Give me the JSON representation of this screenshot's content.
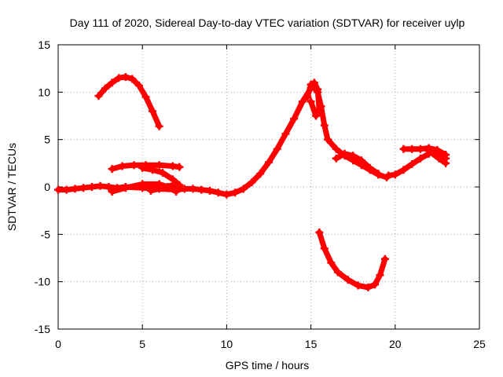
{
  "chart_data": {
    "type": "scatter",
    "title": "Day 111 of 2020, Sidereal Day-to-day VTEC variation (SDTVAR) for receiver uylp",
    "xlabel": "GPS time / hours",
    "ylabel": "SDTVAR / TECUs",
    "xlim": [
      0,
      25
    ],
    "ylim": [
      -15,
      15
    ],
    "xticks": [
      0,
      5,
      10,
      15,
      20,
      25
    ],
    "yticks": [
      -15,
      -10,
      -5,
      0,
      5,
      10,
      15
    ],
    "grid": true,
    "marker_color": "#ff0000",
    "series": [
      {
        "name": "arc-1",
        "points": [
          [
            2.4,
            9.6
          ],
          [
            2.8,
            10.4
          ],
          [
            3.2,
            11.0
          ],
          [
            3.6,
            11.5
          ],
          [
            4.0,
            11.6
          ],
          [
            4.4,
            11.4
          ],
          [
            4.8,
            10.7
          ],
          [
            5.2,
            9.5
          ],
          [
            5.6,
            8.0
          ],
          [
            6.0,
            6.4
          ]
        ]
      },
      {
        "name": "arc-2",
        "points": [
          [
            3.2,
            1.9
          ],
          [
            3.8,
            2.2
          ],
          [
            4.5,
            2.3
          ],
          [
            5.2,
            2.3
          ],
          [
            6.0,
            2.3
          ],
          [
            6.8,
            2.2
          ],
          [
            7.2,
            2.1
          ]
        ]
      },
      {
        "name": "arc-3",
        "points": [
          [
            5.0,
            2.0
          ],
          [
            5.6,
            1.8
          ],
          [
            6.2,
            1.5
          ],
          [
            6.8,
            0.8
          ],
          [
            7.2,
            0.2
          ]
        ]
      },
      {
        "name": "arc-4",
        "points": [
          [
            3.2,
            -0.5
          ],
          [
            4.0,
            -0.1
          ],
          [
            5.0,
            0.3
          ],
          [
            6.0,
            0.3
          ],
          [
            6.5,
            0.0
          ],
          [
            7.0,
            -0.5
          ]
        ]
      },
      {
        "name": "arc-5",
        "points": [
          [
            5.5,
            -0.4
          ],
          [
            6.2,
            -0.1
          ],
          [
            7.0,
            0.3
          ]
        ]
      },
      {
        "name": "arc-6",
        "points": [
          [
            0.0,
            -0.3
          ],
          [
            0.5,
            -0.3
          ],
          [
            1.0,
            -0.2
          ],
          [
            1.5,
            -0.1
          ],
          [
            2.0,
            0.0
          ],
          [
            2.5,
            0.1
          ],
          [
            3.0,
            0.0
          ],
          [
            3.5,
            -0.1
          ],
          [
            4.0,
            0.0
          ],
          [
            5.0,
            -0.1
          ],
          [
            6.0,
            -0.2
          ],
          [
            7.0,
            -0.3
          ],
          [
            7.5,
            -0.2
          ],
          [
            8.0,
            -0.2
          ],
          [
            8.5,
            -0.3
          ],
          [
            9.0,
            -0.4
          ],
          [
            9.5,
            -0.6
          ],
          [
            10.0,
            -0.8
          ],
          [
            10.5,
            -0.6
          ],
          [
            11.0,
            -0.2
          ],
          [
            11.5,
            0.5
          ],
          [
            12.0,
            1.4
          ],
          [
            12.5,
            2.6
          ],
          [
            13.0,
            4.0
          ],
          [
            13.5,
            5.6
          ],
          [
            14.0,
            7.2
          ],
          [
            14.5,
            9.0
          ],
          [
            15.0,
            10.4
          ],
          [
            15.2,
            10.5
          ],
          [
            15.4,
            10.0
          ],
          [
            15.6,
            8.5
          ],
          [
            15.8,
            6.5
          ],
          [
            16.0,
            5.0
          ],
          [
            16.5,
            4.0
          ],
          [
            17.0,
            3.3
          ],
          [
            17.5,
            2.8
          ],
          [
            18.0,
            2.3
          ],
          [
            18.5,
            1.8
          ],
          [
            19.0,
            1.3
          ],
          [
            19.5,
            1.0
          ]
        ]
      },
      {
        "name": "arc-7",
        "points": [
          [
            14.8,
            9.5
          ],
          [
            15.0,
            10.8
          ],
          [
            15.2,
            11.0
          ],
          [
            15.4,
            10.3
          ],
          [
            15.5,
            8.0
          ]
        ]
      },
      {
        "name": "arc-8",
        "points": [
          [
            15.0,
            9.0
          ],
          [
            15.3,
            7.5
          ]
        ]
      },
      {
        "name": "arc-9",
        "points": [
          [
            16.5,
            3.0
          ],
          [
            17.0,
            3.5
          ],
          [
            17.5,
            3.3
          ],
          [
            18.0,
            2.8
          ],
          [
            18.5,
            2.0
          ],
          [
            19.0,
            1.4
          ]
        ]
      },
      {
        "name": "arc-10",
        "points": [
          [
            15.5,
            -4.8
          ],
          [
            15.8,
            -6.5
          ],
          [
            16.2,
            -8.0
          ],
          [
            16.6,
            -9.0
          ],
          [
            17.2,
            -9.8
          ],
          [
            17.8,
            -10.4
          ],
          [
            18.4,
            -10.6
          ],
          [
            18.8,
            -10.3
          ],
          [
            19.1,
            -9.3
          ],
          [
            19.4,
            -7.6
          ]
        ]
      },
      {
        "name": "arc-11",
        "points": [
          [
            19.6,
            1.2
          ],
          [
            20.0,
            1.3
          ],
          [
            20.5,
            1.8
          ],
          [
            21.0,
            2.4
          ],
          [
            21.5,
            3.0
          ],
          [
            22.0,
            3.5
          ],
          [
            22.4,
            3.8
          ],
          [
            22.8,
            3.4
          ],
          [
            23.0,
            3.0
          ]
        ]
      },
      {
        "name": "arc-12",
        "points": [
          [
            20.5,
            4.0
          ],
          [
            21.0,
            4.0
          ],
          [
            21.5,
            4.0
          ],
          [
            22.0,
            4.1
          ],
          [
            22.5,
            3.9
          ],
          [
            23.0,
            3.4
          ]
        ]
      },
      {
        "name": "arc-13",
        "points": [
          [
            22.0,
            3.8
          ],
          [
            22.6,
            3.0
          ],
          [
            23.0,
            2.5
          ]
        ]
      }
    ]
  }
}
